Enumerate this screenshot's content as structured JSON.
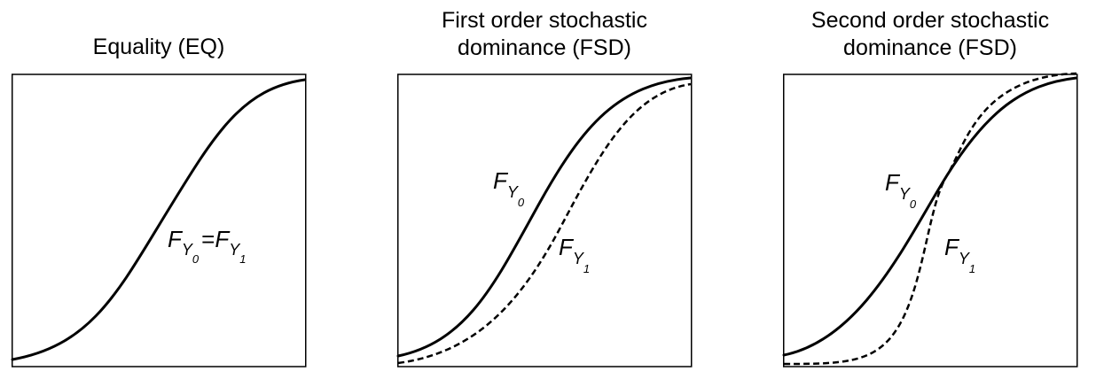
{
  "panels": [
    {
      "id": "eq",
      "title_lines": [
        "Equality (EQ)"
      ],
      "label": {
        "F": "F",
        "Y": "Y",
        "sub0": "0",
        "eq": "=",
        "sub1": "1"
      }
    },
    {
      "id": "fsd",
      "title_lines": [
        "First order stochastic",
        "dominance (FSD)"
      ],
      "label_f0": {
        "F": "F",
        "Y": "Y",
        "sub": "0"
      },
      "label_f1": {
        "F": "F",
        "Y": "Y",
        "sub": "1"
      }
    },
    {
      "id": "ssd",
      "title_lines": [
        "Second order stochastic",
        "dominance (FSD)"
      ],
      "label_f0": {
        "F": "F",
        "Y": "Y",
        "sub": "0"
      },
      "label_f1": {
        "F": "F",
        "Y": "Y",
        "sub": "1"
      }
    }
  ],
  "colors": {
    "line": "#000000",
    "background": "#ffffff"
  }
}
